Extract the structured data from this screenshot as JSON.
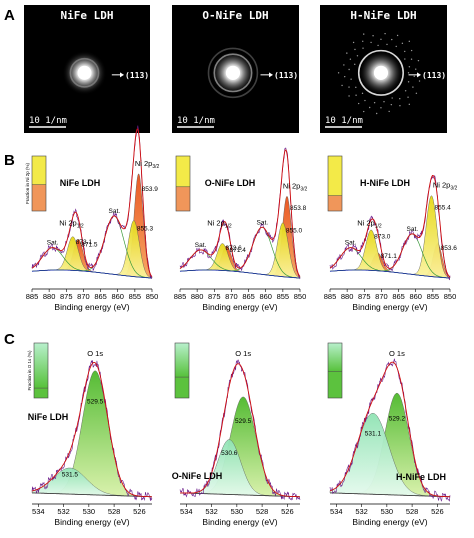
{
  "panel_letters": [
    "A",
    "B",
    "C"
  ],
  "chart_data": [
    {
      "type": "image",
      "panel": "A",
      "images": [
        {
          "title": "NiFe LDH",
          "ring_label": "(113)",
          "scale_label": "10 1/nm",
          "rings": [
            {
              "r": 0.32,
              "intensity": 0.35
            }
          ],
          "core_intensity": 1.0
        },
        {
          "title": "O-NiFe LDH",
          "ring_label": "(113)",
          "scale_label": "10 1/nm",
          "rings": [
            {
              "r": 0.42,
              "intensity": 0.55
            },
            {
              "r": 0.55,
              "intensity": 0.25
            }
          ],
          "core_intensity": 1.0
        },
        {
          "title": "H-NiFe LDH",
          "ring_label": "(113)",
          "scale_label": "10 1/nm",
          "rings": [
            {
              "r": 0.5,
              "intensity": 0.85
            }
          ],
          "core_intensity": 0.95
        }
      ]
    },
    {
      "type": "line",
      "panel": "B",
      "xlabel": "Binding energy (eV)",
      "xlim": [
        885,
        850
      ],
      "xticks": [
        885,
        880,
        875,
        870,
        865,
        860,
        855,
        850
      ],
      "inset_ylabel": "Fraction in Ni 2p (%)",
      "subplots": [
        {
          "sample": "NiFe LDH",
          "inset_fractions": [
            0.52,
            0.48
          ],
          "peaks": [
            {
              "center": 853.9,
              "label": "853.9",
              "height": 0.92,
              "width": 1.3,
              "color": "#e8501a"
            },
            {
              "center": 855.3,
              "label": "855.3",
              "height": 0.5,
              "width": 1.6,
              "color": "#f1e51f"
            },
            {
              "center": 861.0,
              "label": "Sat.",
              "height": 0.52,
              "width": 2.8,
              "color": "none"
            },
            {
              "center": 871.5,
              "label": "871.5",
              "height": 0.28,
              "width": 1.4,
              "color": "#e8501a"
            },
            {
              "center": 873.1,
              "label": "873.1",
              "height": 0.3,
              "width": 1.6,
              "color": "#f1e51f"
            },
            {
              "center": 879.0,
              "label": "Sat.",
              "height": 0.2,
              "width": 3.0,
              "color": "none"
            }
          ],
          "texts": [
            "Ni 2p",
            "3/2",
            "Ni 2p",
            "1/2"
          ]
        },
        {
          "sample": "O-NiFe LDH",
          "inset_fractions": [
            0.56,
            0.44
          ],
          "peaks": [
            {
              "center": 853.8,
              "label": "853.8",
              "height": 0.72,
              "width": 1.3,
              "color": "#e8501a"
            },
            {
              "center": 855.0,
              "label": "855.0",
              "height": 0.48,
              "width": 1.6,
              "color": "#f1e51f"
            },
            {
              "center": 861.0,
              "label": "Sat.",
              "height": 0.42,
              "width": 2.8,
              "color": "none"
            },
            {
              "center": 871.4,
              "label": "871.4",
              "height": 0.22,
              "width": 1.4,
              "color": "#e8501a"
            },
            {
              "center": 872.6,
              "label": "872.6",
              "height": 0.24,
              "width": 1.6,
              "color": "#f1e51f"
            },
            {
              "center": 879.0,
              "label": "Sat.",
              "height": 0.18,
              "width": 3.0,
              "color": "none"
            }
          ],
          "texts": [
            "Ni 2p",
            "3/2",
            "Ni 2p",
            "1/2"
          ]
        },
        {
          "sample": "H-NiFe LDH",
          "inset_fractions": [
            0.72,
            0.28
          ],
          "peaks": [
            {
              "center": 853.6,
              "label": "853.6",
              "height": 0.3,
              "width": 1.3,
              "color": "#e8501a"
            },
            {
              "center": 855.4,
              "label": "855.4",
              "height": 0.72,
              "width": 1.6,
              "color": "#f1e51f"
            },
            {
              "center": 861.0,
              "label": "Sat.",
              "height": 0.36,
              "width": 2.8,
              "color": "none"
            },
            {
              "center": 871.1,
              "label": "871.1",
              "height": 0.16,
              "width": 1.4,
              "color": "#e8501a"
            },
            {
              "center": 873.0,
              "label": "873.0",
              "height": 0.36,
              "width": 1.6,
              "color": "#f1e51f"
            },
            {
              "center": 879.0,
              "label": "Sat.",
              "height": 0.2,
              "width": 3.0,
              "color": "none"
            }
          ],
          "texts": [
            "Ni 2p",
            "3/2",
            "Ni 2p",
            "1/2"
          ]
        }
      ]
    },
    {
      "type": "line",
      "panel": "C",
      "xlabel": "Binding energy (eV)",
      "xlim": [
        534.5,
        525
      ],
      "xticks": [
        534,
        532,
        530,
        528,
        526
      ],
      "inset_ylabel": "Fraction in O 1s (%)",
      "subplots": [
        {
          "sample": "NiFe LDH",
          "inset_fractions": [
            0.82,
            0.18
          ],
          "peaks": [
            {
              "center": 529.5,
              "label": "529.5",
              "height": 0.95,
              "width": 1.0,
              "color": "#5bc236"
            },
            {
              "center": 531.5,
              "label": "531.5",
              "height": 0.2,
              "width": 1.3,
              "color": "#bff0d0"
            }
          ],
          "texts": [
            "O 1s"
          ]
        },
        {
          "sample": "O-NiFe LDH",
          "inset_fractions": [
            0.62,
            0.38
          ],
          "peaks": [
            {
              "center": 529.5,
              "label": "529.5",
              "height": 0.75,
              "width": 1.0,
              "color": "#5bc236"
            },
            {
              "center": 530.6,
              "label": "530.6",
              "height": 0.42,
              "width": 0.9,
              "color": "#bff0d0"
            }
          ],
          "texts": [
            "O 1s"
          ]
        },
        {
          "sample": "H-NiFe LDH",
          "inset_fractions": [
            0.52,
            0.48
          ],
          "peaks": [
            {
              "center": 529.2,
              "label": "529.2",
              "height": 0.78,
              "width": 0.95,
              "color": "#5bc236"
            },
            {
              "center": 531.1,
              "label": "531.1",
              "height": 0.62,
              "width": 1.25,
              "color": "#bff0d0"
            }
          ],
          "texts": [
            "O 1s"
          ]
        }
      ]
    }
  ]
}
